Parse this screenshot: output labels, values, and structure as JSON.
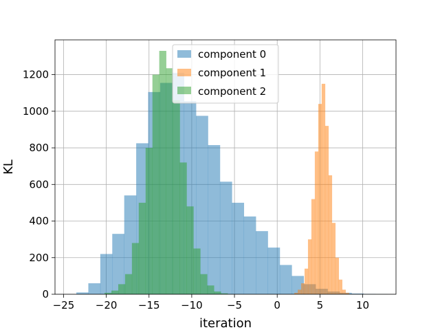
{
  "chart_data": {
    "type": "histogram",
    "title": "",
    "xlabel": "iteration",
    "ylabel": "KL",
    "xlim": [
      -26,
      13.9
    ],
    "ylim": [
      0,
      1390
    ],
    "grid": true,
    "legend_position": "top-center",
    "x_ticks": [
      -25,
      -20,
      -15,
      -10,
      -5,
      0,
      5,
      10
    ],
    "y_ticks": [
      0,
      200,
      400,
      600,
      800,
      1000,
      1200
    ],
    "series": [
      {
        "name": "component 0",
        "color": "#1f77b4",
        "opacity": 0.5,
        "bin_edges": [
          -23.5,
          -22.1,
          -20.7,
          -19.3,
          -17.9,
          -16.5,
          -15.1,
          -13.7,
          -12.3,
          -10.9,
          -9.5,
          -8.1,
          -6.7,
          -5.3,
          -3.9,
          -2.5,
          -1.1,
          0.3,
          1.7,
          3.1,
          4.5,
          5.9,
          7.3,
          8.7,
          10.1,
          11.5,
          12.9
        ],
        "counts": [
          10,
          60,
          220,
          330,
          540,
          825,
          1105,
          1155,
          1210,
          1055,
          975,
          815,
          615,
          500,
          425,
          345,
          255,
          160,
          100,
          55,
          30,
          15,
          8,
          4,
          2,
          1
        ]
      },
      {
        "name": "component 1",
        "color": "#ff7f0e",
        "opacity": 0.5,
        "bin_edges": [
          2.0,
          2.4,
          2.8,
          3.2,
          3.6,
          4.0,
          4.4,
          4.8,
          5.2,
          5.6,
          6.0,
          6.4,
          6.8,
          7.2,
          7.6,
          8.0,
          8.4
        ],
        "counts": [
          8,
          25,
          60,
          140,
          300,
          520,
          780,
          1040,
          1150,
          920,
          650,
          390,
          200,
          80,
          25,
          8
        ]
      },
      {
        "name": "component 2",
        "color": "#2ca02c",
        "opacity": 0.5,
        "bin_edges": [
          -20.2,
          -19.4,
          -18.6,
          -17.8,
          -17.0,
          -16.2,
          -15.4,
          -14.6,
          -13.8,
          -13.0,
          -12.2,
          -11.4,
          -10.6,
          -9.8,
          -9.0,
          -8.2,
          -7.4,
          -6.6,
          -5.8
        ],
        "counts": [
          8,
          20,
          55,
          110,
          280,
          500,
          800,
          1200,
          1330,
          1235,
          1060,
          720,
          480,
          250,
          110,
          48,
          15,
          5
        ]
      }
    ]
  }
}
